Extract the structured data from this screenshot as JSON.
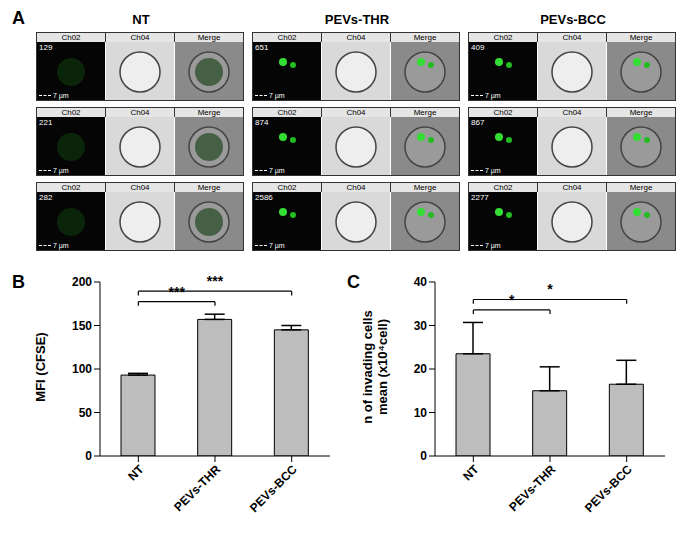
{
  "image_panel": {
    "title": "A",
    "channels": [
      "Ch02",
      "Ch04",
      "Merge"
    ],
    "scale_bar": "7 µm",
    "groups": [
      {
        "name": "NT",
        "image_numbers": [
          129,
          221,
          282
        ]
      },
      {
        "name": "PEVs-THR",
        "image_numbers": [
          651,
          874,
          2586
        ]
      },
      {
        "name": "PEVs-BCC",
        "image_numbers": [
          409,
          867,
          2277
        ]
      }
    ]
  },
  "chart_data": [
    {
      "type": "bar",
      "title": "B",
      "ylabel": [
        "MFI (CFSE)"
      ],
      "categories": [
        "NT",
        "PEVs-THR",
        "PEVs-BCC"
      ],
      "values": [
        93,
        157,
        145
      ],
      "errors": [
        2,
        6,
        5
      ],
      "color": "#bdbdbd",
      "ylim": [
        0,
        200
      ],
      "yticks": [
        0,
        50,
        100,
        150,
        200
      ],
      "grid": false,
      "annotations": [
        {
          "from": "NT",
          "to": "PEVs-THR",
          "label": "***"
        },
        {
          "from": "NT",
          "to": "PEVs-BCC",
          "label": "***"
        }
      ]
    },
    {
      "type": "bar",
      "title": "C",
      "ylabel": [
        "n of invading cells",
        "mean (x10⁴cell)"
      ],
      "categories": [
        "NT",
        "PEVs-THR",
        "PEVs-BCC"
      ],
      "values": [
        23.5,
        15,
        16.5
      ],
      "errors": [
        7.2,
        5.5,
        5.5
      ],
      "color": "#bdbdbd",
      "ylim": [
        0,
        40
      ],
      "yticks": [
        0,
        10,
        20,
        30,
        40
      ],
      "grid": false,
      "annotations": [
        {
          "from": "NT",
          "to": "PEVs-THR",
          "label": "*"
        },
        {
          "from": "NT",
          "to": "PEVs-BCC",
          "label": "*"
        }
      ]
    }
  ]
}
